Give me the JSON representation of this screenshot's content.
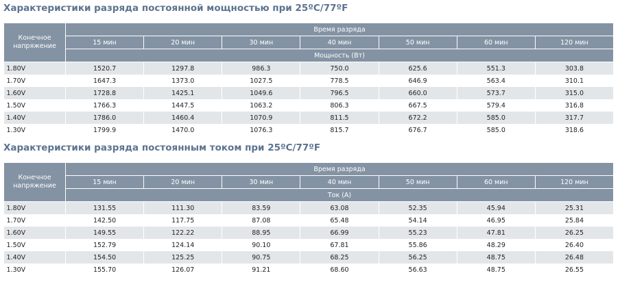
{
  "tables": [
    {
      "title": "Характеристики разряда постоянной мощностью при 25ºC/77ºF",
      "row_header": "Конечное напряжение",
      "group_header": "Время разряда",
      "columns": [
        "15 мин",
        "20 мин",
        "30 мин",
        "40 мин",
        "50 мин",
        "60 мин",
        "120 мин"
      ],
      "unit": "Мощность (Вт)",
      "rows": [
        {
          "voltage": "1.80V",
          "values": [
            "1520.7",
            "1297.8",
            "986.3",
            "750.0",
            "625.6",
            "551.3",
            "303.8"
          ]
        },
        {
          "voltage": "1.70V",
          "values": [
            "1647.3",
            "1373.0",
            "1027.5",
            "778.5",
            "646.9",
            "563.4",
            "310.1"
          ]
        },
        {
          "voltage": "1.60V",
          "values": [
            "1728.8",
            "1425.1",
            "1049.6",
            "796.5",
            "660.0",
            "573.7",
            "315.0"
          ]
        },
        {
          "voltage": "1.50V",
          "values": [
            "1766.3",
            "1447.5",
            "1063.2",
            "806.3",
            "667.5",
            "579.4",
            "316.8"
          ]
        },
        {
          "voltage": "1.40V",
          "values": [
            "1786.0",
            "1460.4",
            "1070.9",
            "811.5",
            "672.2",
            "585.0",
            "317.7"
          ]
        },
        {
          "voltage": "1.30V",
          "values": [
            "1799.9",
            "1470.0",
            "1076.3",
            "815.7",
            "676.7",
            "585.0",
            "318.6"
          ]
        }
      ]
    },
    {
      "title": "Характеристики разряда постоянным током при 25ºC/77ºF",
      "row_header": "Конечное напряжение",
      "group_header": "Время разряда",
      "columns": [
        "15 мин",
        "20 мин",
        "30 мин",
        "40 мин",
        "50 мин",
        "60 мин",
        "120 мин"
      ],
      "unit": "Ток (A)",
      "rows": [
        {
          "voltage": "1.80V",
          "values": [
            "131.55",
            "111.30",
            "83.59",
            "63.08",
            "52.35",
            "45.94",
            "25.31"
          ]
        },
        {
          "voltage": "1.70V",
          "values": [
            "142.50",
            "117.75",
            "87.08",
            "65.48",
            "54.14",
            "46.95",
            "25.84"
          ]
        },
        {
          "voltage": "1.60V",
          "values": [
            "149.55",
            "122.22",
            "88.95",
            "66.99",
            "55.23",
            "47.81",
            "26.25"
          ]
        },
        {
          "voltage": "1.50V",
          "values": [
            "152.79",
            "124.14",
            "90.10",
            "67.81",
            "55.86",
            "48.29",
            "26.40"
          ]
        },
        {
          "voltage": "1.40V",
          "values": [
            "154.50",
            "125.25",
            "90.75",
            "68.25",
            "56.25",
            "48.75",
            "26.48"
          ]
        },
        {
          "voltage": "1.30V",
          "values": [
            "155.70",
            "126.07",
            "91.21",
            "68.60",
            "56.63",
            "48.75",
            "26.55"
          ]
        }
      ]
    }
  ]
}
